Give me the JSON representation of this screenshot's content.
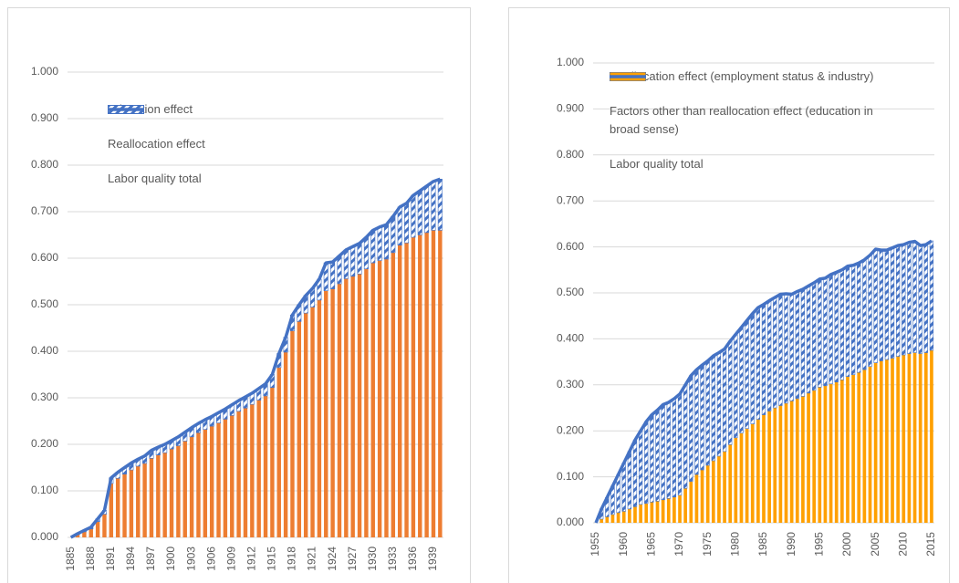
{
  "chart_data": [
    {
      "type": "bar",
      "stacked": true,
      "categories": [
        "1885",
        null,
        null,
        "1888",
        null,
        null,
        "1891",
        null,
        null,
        "1894",
        null,
        null,
        "1897",
        null,
        null,
        "1900",
        null,
        null,
        "1903",
        null,
        null,
        "1906",
        null,
        null,
        "1909",
        null,
        null,
        "1912",
        null,
        null,
        "1915",
        null,
        null,
        "1918",
        null,
        null,
        "1921",
        null,
        null,
        "1924",
        null,
        null,
        "1927",
        null,
        null,
        "1930",
        null,
        null,
        "1933",
        null,
        null,
        "1936",
        null,
        null,
        "1939",
        null
      ],
      "series": [
        {
          "name": "Education effect",
          "type": "bar",
          "color": "#ed7d31",
          "values": [
            0.0,
            0.006,
            0.012,
            0.018,
            0.034,
            0.05,
            0.116,
            0.127,
            0.136,
            0.145,
            0.153,
            0.159,
            0.17,
            0.177,
            0.182,
            0.19,
            0.197,
            0.207,
            0.216,
            0.225,
            0.232,
            0.239,
            0.246,
            0.254,
            0.262,
            0.271,
            0.278,
            0.286,
            0.295,
            0.304,
            0.322,
            0.365,
            0.398,
            0.444,
            0.464,
            0.482,
            0.495,
            0.51,
            0.53,
            0.534,
            0.545,
            0.556,
            0.561,
            0.566,
            0.577,
            0.59,
            0.595,
            0.598,
            0.612,
            0.628,
            0.633,
            0.645,
            0.65,
            0.655,
            0.66,
            0.66
          ]
        },
        {
          "name": "Reallocation effect",
          "type": "bar",
          "color": "#4472c4",
          "hatch": true,
          "values": [
            0.0,
            0.002,
            0.003,
            0.004,
            0.006,
            0.008,
            0.012,
            0.013,
            0.014,
            0.015,
            0.015,
            0.016,
            0.017,
            0.017,
            0.018,
            0.018,
            0.019,
            0.019,
            0.02,
            0.02,
            0.021,
            0.021,
            0.022,
            0.022,
            0.023,
            0.023,
            0.024,
            0.024,
            0.025,
            0.026,
            0.028,
            0.03,
            0.032,
            0.034,
            0.036,
            0.038,
            0.04,
            0.045,
            0.06,
            0.058,
            0.06,
            0.062,
            0.064,
            0.066,
            0.068,
            0.07,
            0.072,
            0.074,
            0.078,
            0.082,
            0.085,
            0.09,
            0.095,
            0.1,
            0.105,
            0.11
          ]
        },
        {
          "name": "Labor quality total",
          "type": "line",
          "color": "#4472c4",
          "values": [
            0.0,
            0.008,
            0.015,
            0.022,
            0.04,
            0.058,
            0.128,
            0.14,
            0.15,
            0.16,
            0.168,
            0.175,
            0.187,
            0.194,
            0.2,
            0.208,
            0.216,
            0.226,
            0.236,
            0.245,
            0.253,
            0.26,
            0.268,
            0.276,
            0.285,
            0.294,
            0.302,
            0.31,
            0.32,
            0.33,
            0.35,
            0.395,
            0.43,
            0.478,
            0.5,
            0.52,
            0.535,
            0.555,
            0.59,
            0.592,
            0.605,
            0.618,
            0.625,
            0.632,
            0.645,
            0.66,
            0.667,
            0.672,
            0.69,
            0.71,
            0.718,
            0.735,
            0.745,
            0.755,
            0.765,
            0.77
          ]
        }
      ],
      "ylim": [
        0,
        1
      ],
      "yticks": [
        {
          "value": 0,
          "label": "0.000"
        },
        {
          "value": 0.1,
          "label": "0.100"
        },
        {
          "value": 0.2,
          "label": "0.200"
        },
        {
          "value": 0.3,
          "label": "0.300"
        },
        {
          "value": 0.4,
          "label": "0.400"
        },
        {
          "value": 0.5,
          "label": "0.500"
        },
        {
          "value": 0.6,
          "label": "0.600"
        },
        {
          "value": 0.7,
          "label": "0.700"
        },
        {
          "value": 0.8,
          "label": "0.800"
        },
        {
          "value": 0.9,
          "label": "0.900"
        },
        {
          "value": 1,
          "label": "1.000"
        }
      ],
      "grid": true
    },
    {
      "type": "bar",
      "stacked": true,
      "legend_reversed": true,
      "categories": [
        "1955",
        null,
        null,
        null,
        null,
        "1960",
        null,
        null,
        null,
        null,
        "1965",
        null,
        null,
        null,
        null,
        "1970",
        null,
        null,
        null,
        null,
        "1975",
        null,
        null,
        null,
        null,
        "1980",
        null,
        null,
        null,
        null,
        "1985",
        null,
        null,
        null,
        null,
        "1990",
        null,
        null,
        null,
        null,
        "1995",
        null,
        null,
        null,
        null,
        "2000",
        null,
        null,
        null,
        null,
        "2005",
        null,
        null,
        null,
        null,
        "2010",
        null,
        null,
        null,
        null,
        "2015"
      ],
      "series": [
        {
          "name": "Factors other than reallocation effect (education in broad sense)",
          "type": "bar",
          "color": "#ffa000",
          "values": [
            0.0,
            0.008,
            0.013,
            0.018,
            0.022,
            0.025,
            0.03,
            0.035,
            0.04,
            0.042,
            0.045,
            0.047,
            0.05,
            0.053,
            0.056,
            0.06,
            0.075,
            0.09,
            0.105,
            0.115,
            0.125,
            0.135,
            0.145,
            0.155,
            0.17,
            0.185,
            0.195,
            0.205,
            0.215,
            0.225,
            0.235,
            0.243,
            0.25,
            0.255,
            0.26,
            0.265,
            0.27,
            0.275,
            0.282,
            0.288,
            0.295,
            0.298,
            0.302,
            0.306,
            0.311,
            0.318,
            0.322,
            0.327,
            0.333,
            0.34,
            0.348,
            0.352,
            0.355,
            0.358,
            0.362,
            0.365,
            0.368,
            0.37,
            0.368,
            0.37,
            0.375
          ]
        },
        {
          "name": "Reallocation effect (employment status & industry)",
          "type": "bar",
          "color": "#4472c4",
          "hatch": true,
          "values": [
            0.0,
            0.022,
            0.042,
            0.062,
            0.083,
            0.105,
            0.125,
            0.145,
            0.16,
            0.178,
            0.19,
            0.198,
            0.207,
            0.209,
            0.214,
            0.22,
            0.225,
            0.23,
            0.228,
            0.228,
            0.227,
            0.228,
            0.225,
            0.223,
            0.225,
            0.225,
            0.23,
            0.235,
            0.24,
            0.243,
            0.24,
            0.24,
            0.24,
            0.242,
            0.238,
            0.232,
            0.233,
            0.233,
            0.233,
            0.234,
            0.235,
            0.234,
            0.238,
            0.239,
            0.239,
            0.24,
            0.238,
            0.238,
            0.239,
            0.242,
            0.247,
            0.241,
            0.238,
            0.24,
            0.241,
            0.24,
            0.242,
            0.242,
            0.235,
            0.235,
            0.238
          ]
        },
        {
          "name": "Labor quality total",
          "type": "line",
          "color": "#4472c4",
          "values": [
            0.0,
            0.03,
            0.055,
            0.08,
            0.105,
            0.13,
            0.155,
            0.18,
            0.2,
            0.22,
            0.235,
            0.245,
            0.257,
            0.262,
            0.27,
            0.28,
            0.3,
            0.32,
            0.333,
            0.343,
            0.352,
            0.363,
            0.37,
            0.378,
            0.395,
            0.41,
            0.425,
            0.44,
            0.455,
            0.468,
            0.475,
            0.483,
            0.49,
            0.497,
            0.498,
            0.497,
            0.503,
            0.508,
            0.515,
            0.522,
            0.53,
            0.532,
            0.54,
            0.545,
            0.55,
            0.558,
            0.56,
            0.565,
            0.572,
            0.582,
            0.595,
            0.593,
            0.593,
            0.598,
            0.603,
            0.605,
            0.61,
            0.612,
            0.603,
            0.605,
            0.613
          ]
        }
      ],
      "ylim": [
        0,
        1
      ],
      "yticks": [
        {
          "value": 0,
          "label": "0.000"
        },
        {
          "value": 0.1,
          "label": "0.100"
        },
        {
          "value": 0.2,
          "label": "0.200"
        },
        {
          "value": 0.3,
          "label": "0.300"
        },
        {
          "value": 0.4,
          "label": "0.400"
        },
        {
          "value": 0.5,
          "label": "0.500"
        },
        {
          "value": 0.6,
          "label": "0.600"
        },
        {
          "value": 0.7,
          "label": "0.700"
        },
        {
          "value": 0.8,
          "label": "0.800"
        },
        {
          "value": 0.9,
          "label": "0.900"
        },
        {
          "value": 1,
          "label": "1.000"
        }
      ],
      "grid": true
    }
  ]
}
